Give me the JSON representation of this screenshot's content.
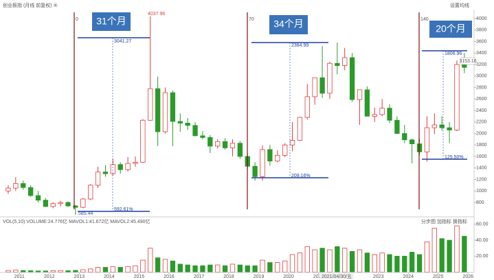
{
  "chart_data": {
    "type": "candlestick",
    "title": "创业板指 (月线 前复权) ⑤",
    "toolbar": "设置均线",
    "volume_title": "VOL(5,10)  VOLUME:24.776亿  MAVOL1:41.672亿  MAVOL2:45.490亿",
    "volume_tools": [
      "分步图",
      "加指标",
      "换指标"
    ],
    "cursor_date": "2021/04/30/五",
    "last_price_label": "3153.16",
    "high_label": "4037.96",
    "low_label": "585.44",
    "annotations": [
      {
        "box": "31个月",
        "counter": "0",
        "top": "3041.27",
        "bottom": "592.61%"
      },
      {
        "box": "34个月",
        "counter": "70",
        "top": "2384.99",
        "bottom": "209.16%"
      },
      {
        "box": "20个月",
        "counter": "140",
        "top": "1806.96",
        "bottom": "125.50%"
      }
    ],
    "up_color": "#e03a3a",
    "down_color": "#2b9a2b",
    "xlim": [
      2010.35,
      2026.2
    ],
    "xticks": [
      2011,
      2012,
      2013,
      2014,
      2015,
      2016,
      2017,
      2018,
      2019,
      2020,
      2021,
      2022,
      2023,
      2024,
      2025,
      2026
    ],
    "ylim": [
      700,
      4100
    ],
    "yticks": [
      800,
      1000,
      1200,
      1400,
      1600,
      1800,
      2000,
      2200,
      2400,
      2600,
      2800,
      3000,
      3200,
      3400,
      3600,
      3800,
      4000
    ],
    "vlim": [
      0,
      65
    ],
    "vticks": [
      {
        "value": 20,
        "label": "20.00"
      },
      {
        "value": 40,
        "label": "40.00"
      },
      {
        "value": 60,
        "label": "60.00"
      }
    ],
    "x": [
      2010.5,
      2010.75,
      2011,
      2011.25,
      2011.5,
      2011.75,
      2012,
      2012.25,
      2012.5,
      2012.75,
      2013,
      2013.25,
      2013.5,
      2013.75,
      2014,
      2014.25,
      2014.5,
      2014.75,
      2015,
      2015.25,
      2015.5,
      2015.75,
      2016,
      2016.25,
      2016.5,
      2016.75,
      2017,
      2017.25,
      2017.5,
      2017.75,
      2018,
      2018.25,
      2018.5,
      2018.75,
      2019,
      2019.25,
      2019.5,
      2019.75,
      2020,
      2020.25,
      2020.5,
      2020.75,
      2021,
      2021.25,
      2021.5,
      2021.75,
      2022,
      2022.25,
      2022.5,
      2022.75,
      2023,
      2023.25,
      2023.5,
      2023.75,
      2024,
      2024.25,
      2024.5,
      2024.75,
      2025,
      2025.25,
      2025.5,
      2025.75
    ],
    "candles": [
      [
        1000,
        1100,
        950,
        1050
      ],
      [
        1050,
        1240,
        1000,
        1130
      ],
      [
        1130,
        1180,
        1020,
        1060
      ],
      [
        1060,
        1100,
        900,
        920
      ],
      [
        920,
        1000,
        800,
        840
      ],
      [
        840,
        880,
        720,
        730
      ],
      [
        730,
        800,
        700,
        780
      ],
      [
        780,
        830,
        730,
        800
      ],
      [
        800,
        820,
        720,
        740
      ],
      [
        740,
        760,
        585,
        715
      ],
      [
        715,
        880,
        700,
        860
      ],
      [
        860,
        1120,
        840,
        1100
      ],
      [
        1100,
        1420,
        1050,
        1330
      ],
      [
        1330,
        1450,
        1250,
        1300
      ],
      [
        1300,
        1560,
        1270,
        1460
      ],
      [
        1460,
        1500,
        1300,
        1370
      ],
      [
        1370,
        1590,
        1340,
        1480
      ],
      [
        1480,
        1600,
        1420,
        1500
      ],
      [
        1500,
        2250,
        1490,
        2230
      ],
      [
        2230,
        4037,
        2220,
        2780
      ],
      [
        2780,
        2990,
        1780,
        2030
      ],
      [
        2030,
        2800,
        2000,
        2710
      ],
      [
        2710,
        2750,
        1780,
        2210
      ],
      [
        2210,
        2350,
        2030,
        2180
      ],
      [
        2180,
        2270,
        2060,
        2140
      ],
      [
        2140,
        2200,
        1950,
        1960
      ],
      [
        1960,
        2040,
        1900,
        1930
      ],
      [
        1930,
        1970,
        1660,
        1780
      ],
      [
        1780,
        1900,
        1740,
        1860
      ],
      [
        1860,
        1920,
        1720,
        1750
      ],
      [
        1750,
        1900,
        1600,
        1830
      ],
      [
        1830,
        1870,
        1560,
        1600
      ],
      [
        1600,
        1650,
        1380,
        1430
      ],
      [
        1430,
        1500,
        1180,
        1250
      ],
      [
        1250,
        1790,
        1180,
        1720
      ],
      [
        1720,
        1800,
        1440,
        1520
      ],
      [
        1520,
        1710,
        1500,
        1620
      ],
      [
        1620,
        1830,
        1590,
        1800
      ],
      [
        1800,
        2200,
        1690,
        1880
      ],
      [
        1880,
        2290,
        1870,
        2280
      ],
      [
        2280,
        2860,
        2240,
        2640
      ],
      [
        2640,
        2970,
        2500,
        2970
      ],
      [
        2970,
        3520,
        2620,
        2700
      ],
      [
        2700,
        3250,
        2600,
        3220
      ],
      [
        3220,
        3580,
        3030,
        3180
      ],
      [
        3180,
        3490,
        3100,
        3320
      ],
      [
        3320,
        3400,
        2550,
        2590
      ],
      [
        2590,
        2750,
        2150,
        2760
      ],
      [
        2760,
        2820,
        2300,
        2300
      ],
      [
        2300,
        2450,
        2200,
        2330
      ],
      [
        2330,
        2600,
        2300,
        2440
      ],
      [
        2440,
        2510,
        2180,
        2230
      ],
      [
        2230,
        2300,
        1990,
        2000
      ],
      [
        2000,
        2150,
        1830,
        1890
      ],
      [
        1890,
        1910,
        1480,
        1820
      ],
      [
        1820,
        1910,
        1620,
        1680
      ],
      [
        1680,
        2300,
        1510,
        2100
      ],
      [
        2100,
        2350,
        1990,
        2150
      ],
      [
        2150,
        2300,
        2050,
        2100
      ],
      [
        2100,
        2200,
        1830,
        2060
      ],
      [
        2060,
        3270,
        2040,
        3200
      ],
      [
        3200,
        3400,
        3050,
        3150
      ]
    ],
    "volume": [
      2,
      2.5,
      2,
      1.8,
      1.5,
      1.5,
      1.8,
      2,
      1.8,
      2.2,
      3,
      4,
      6,
      6,
      7,
      6,
      7,
      8,
      15,
      30,
      18,
      16,
      14,
      10,
      9,
      8,
      8,
      9,
      9,
      8,
      10,
      9,
      8,
      8,
      15,
      12,
      12,
      14,
      22,
      24,
      32,
      28,
      30,
      28,
      32,
      30,
      26,
      28,
      24,
      22,
      24,
      22,
      20,
      20,
      25,
      22,
      38,
      55,
      42,
      40,
      58,
      45
    ]
  }
}
